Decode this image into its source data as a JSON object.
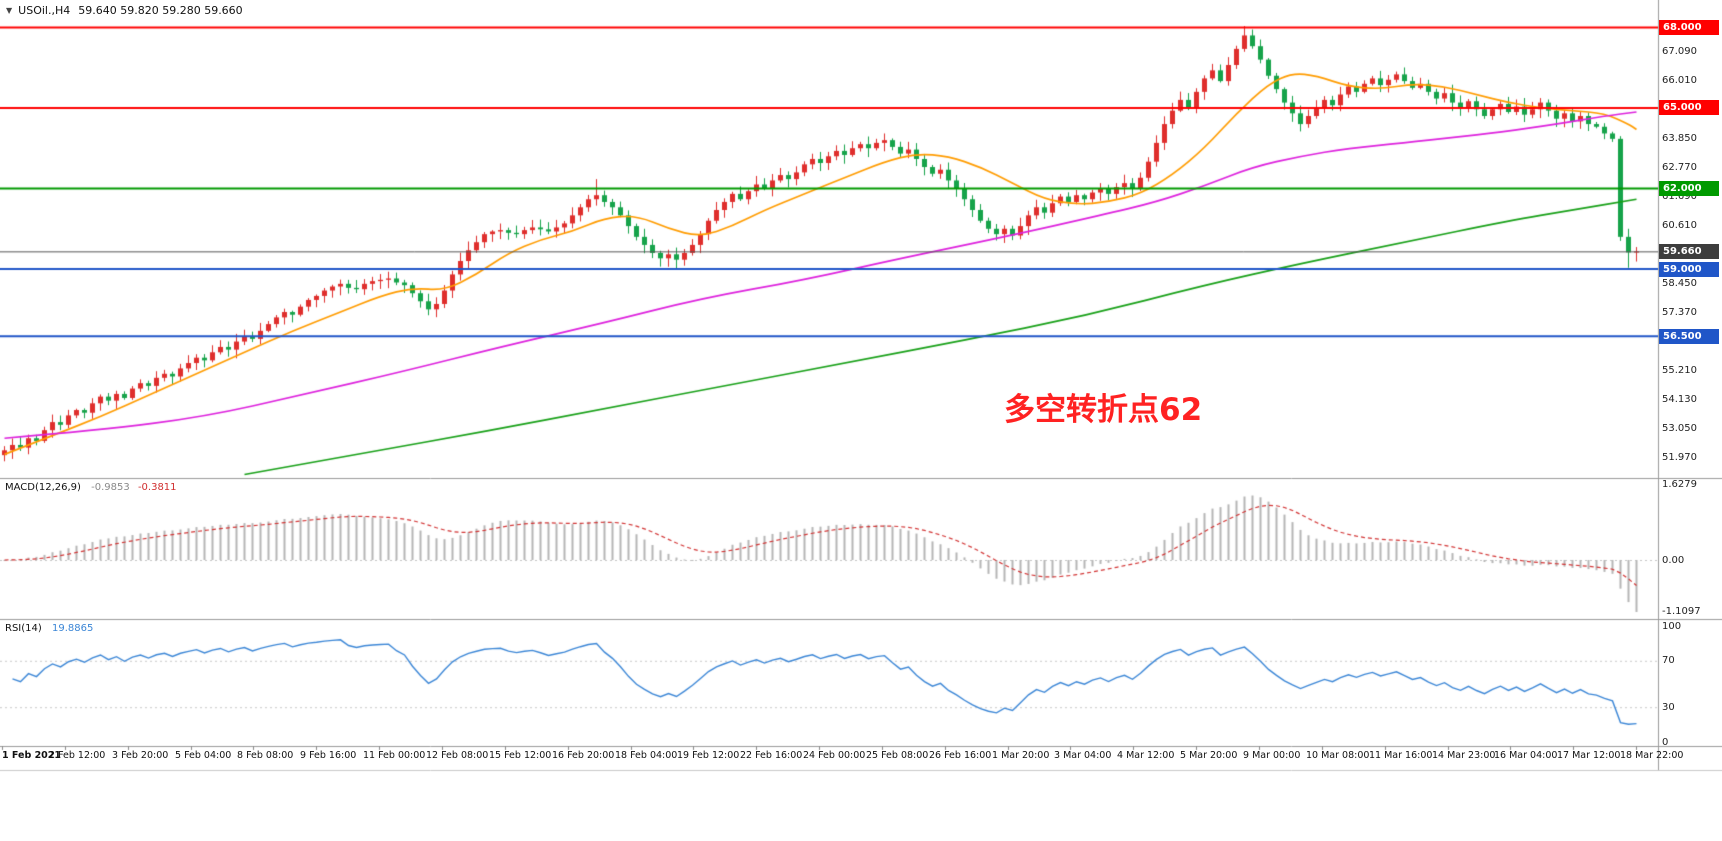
{
  "header": {
    "symbol": "USOil.,H4",
    "quote": "59.640 59.820 59.280 59.660"
  },
  "annotation": {
    "text": "多空转折点62",
    "color": "#ff2222"
  },
  "levels": [
    {
      "label": "68.000",
      "value": 68.0,
      "color": "#ff0000"
    },
    {
      "label": "65.000",
      "value": 65.0,
      "color": "#ff0000"
    },
    {
      "label": "62.000",
      "value": 62.0,
      "color": "#009a00"
    },
    {
      "label": "59.000",
      "value": 59.0,
      "color": "#2056c8"
    },
    {
      "label": "56.500",
      "value": 56.5,
      "color": "#2056c8"
    }
  ],
  "current_price": {
    "label": "59.660",
    "value": 59.66,
    "line_color": "#555555",
    "badge_color": "#3d3d3d"
  },
  "price_axis_labels": [
    {
      "label": "67.090",
      "value": 67.09
    },
    {
      "label": "66.010",
      "value": 66.01
    },
    {
      "label": "64.930",
      "value": 64.93
    },
    {
      "label": "63.850",
      "value": 63.85
    },
    {
      "label": "62.770",
      "value": 62.77
    },
    {
      "label": "61.690",
      "value": 61.69
    },
    {
      "label": "60.610",
      "value": 60.61
    },
    {
      "label": "59.530",
      "value": 59.53
    },
    {
      "label": "58.450",
      "value": 58.45
    },
    {
      "label": "57.370",
      "value": 57.37
    },
    {
      "label": "56.290",
      "value": 56.29
    },
    {
      "label": "55.210",
      "value": 55.21
    },
    {
      "label": "54.130",
      "value": 54.13
    },
    {
      "label": "53.050",
      "value": 53.05
    },
    {
      "label": "51.970",
      "value": 51.97
    }
  ],
  "macd_panel": {
    "label": "MACD(12,26,9)",
    "value_main": "-0.9853",
    "value_signal": "-0.3811",
    "axis": [
      {
        "label": "1.6279",
        "value": 1.6279
      },
      {
        "label": "0.00",
        "value": 0
      },
      {
        "label": "-1.1097",
        "value": -1.1097
      }
    ]
  },
  "rsi_panel": {
    "label": "RSI(14)",
    "value": "19.8865",
    "levels": [
      70,
      30
    ],
    "axis": [
      {
        "label": "100",
        "value": 100
      },
      {
        "label": "70",
        "value": 70
      },
      {
        "label": "30",
        "value": 30
      },
      {
        "label": "0",
        "value": 0
      }
    ]
  },
  "chart_data": {
    "type": "candlestick",
    "symbol": "USOil",
    "timeframe": "H4",
    "up_color": "#df2e2c",
    "down_color": "#16a34a",
    "price_range_hint": [
      51.2,
      68.35
    ],
    "last_ohlc": {
      "open": 59.64,
      "high": 59.82,
      "low": 59.28,
      "close": 59.66
    },
    "indicators": {
      "macd": {
        "fast": 12,
        "slow": 26,
        "signal": 9,
        "main_value": -0.9853,
        "signal_value": -0.3811
      },
      "rsi": {
        "period": 14,
        "value": 19.8865
      }
    },
    "closes": [
      52.25,
      52.45,
      52.35,
      52.7,
      52.6,
      53.0,
      53.3,
      53.2,
      53.55,
      53.75,
      53.65,
      54.0,
      54.25,
      54.1,
      54.35,
      54.2,
      54.55,
      54.75,
      54.65,
      54.95,
      55.1,
      55.0,
      55.3,
      55.5,
      55.7,
      55.6,
      55.9,
      56.1,
      56.0,
      56.3,
      56.5,
      56.4,
      56.7,
      56.95,
      57.2,
      57.4,
      57.3,
      57.6,
      57.85,
      58.0,
      58.2,
      58.35,
      58.45,
      58.3,
      58.25,
      58.45,
      58.55,
      58.6,
      58.65,
      58.5,
      58.4,
      58.1,
      57.8,
      57.5,
      57.7,
      58.2,
      58.8,
      59.3,
      59.7,
      60.0,
      60.3,
      60.4,
      60.45,
      60.35,
      60.3,
      60.45,
      60.55,
      60.48,
      60.4,
      60.55,
      60.7,
      61.0,
      61.3,
      61.6,
      61.75,
      61.5,
      61.3,
      61.0,
      60.6,
      60.2,
      59.9,
      59.6,
      59.4,
      59.55,
      59.35,
      59.6,
      59.9,
      60.3,
      60.8,
      61.2,
      61.5,
      61.8,
      61.6,
      61.9,
      62.15,
      62.0,
      62.3,
      62.5,
      62.35,
      62.6,
      62.9,
      63.1,
      62.95,
      63.2,
      63.4,
      63.25,
      63.5,
      63.65,
      63.5,
      63.7,
      63.8,
      63.55,
      63.3,
      63.45,
      63.1,
      62.8,
      62.55,
      62.7,
      62.3,
      62.0,
      61.6,
      61.2,
      60.8,
      60.5,
      60.3,
      60.5,
      60.25,
      60.6,
      61.0,
      61.3,
      61.1,
      61.45,
      61.7,
      61.5,
      61.75,
      61.6,
      61.85,
      62.0,
      61.8,
      62.05,
      62.2,
      62.0,
      62.4,
      63.0,
      63.7,
      64.4,
      64.9,
      65.3,
      65.0,
      65.6,
      66.1,
      66.4,
      66.0,
      66.6,
      67.2,
      67.7,
      67.3,
      66.8,
      66.2,
      65.7,
      65.2,
      64.8,
      64.4,
      64.7,
      65.0,
      65.3,
      65.1,
      65.5,
      65.8,
      65.6,
      65.9,
      66.1,
      65.85,
      66.05,
      66.25,
      66.0,
      65.75,
      65.9,
      65.6,
      65.35,
      65.55,
      65.2,
      65.0,
      65.25,
      64.95,
      64.7,
      64.95,
      65.15,
      64.85,
      65.05,
      64.75,
      64.95,
      65.2,
      64.9,
      64.6,
      64.8,
      64.5,
      64.7,
      64.4,
      64.3,
      64.05,
      63.85,
      60.2,
      59.62,
      59.66
    ],
    "candle_overrides": {
      "1": {
        "low": 51.93
      },
      "53": {
        "low": 57.28
      },
      "74": {
        "high": 62.35
      },
      "110": {
        "high": 64.05
      },
      "155": {
        "high": 68.05
      },
      "156": {
        "high": 67.92
      },
      "202": {
        "high": 63.95,
        "low": 60.05
      },
      "203": {
        "low": 59.05
      },
      "204": {
        "open": 59.64,
        "high": 59.82,
        "low": 59.28,
        "close": 59.66
      }
    },
    "overlays": [
      {
        "name": "ma-fast",
        "color": "#ff9c00",
        "points": [
          [
            0,
            52.1
          ],
          [
            6,
            52.8
          ],
          [
            12,
            53.5
          ],
          [
            18,
            54.3
          ],
          [
            24,
            55.1
          ],
          [
            30,
            55.9
          ],
          [
            36,
            56.7
          ],
          [
            42,
            57.4
          ],
          [
            47,
            58.0
          ],
          [
            51,
            58.3
          ],
          [
            55,
            58.2
          ],
          [
            59,
            58.8
          ],
          [
            63,
            59.6
          ],
          [
            67,
            60.1
          ],
          [
            71,
            60.4
          ],
          [
            75,
            60.9
          ],
          [
            79,
            61.0
          ],
          [
            83,
            60.5
          ],
          [
            87,
            60.2
          ],
          [
            91,
            60.6
          ],
          [
            95,
            61.2
          ],
          [
            100,
            61.8
          ],
          [
            105,
            62.4
          ],
          [
            110,
            63.0
          ],
          [
            114,
            63.3
          ],
          [
            118,
            63.2
          ],
          [
            122,
            62.8
          ],
          [
            126,
            62.2
          ],
          [
            130,
            61.6
          ],
          [
            134,
            61.4
          ],
          [
            138,
            61.5
          ],
          [
            142,
            61.8
          ],
          [
            146,
            62.5
          ],
          [
            150,
            63.5
          ],
          [
            154,
            64.8
          ],
          [
            158,
            65.9
          ],
          [
            161,
            66.3
          ],
          [
            164,
            66.2
          ],
          [
            168,
            65.8
          ],
          [
            172,
            65.7
          ],
          [
            176,
            65.9
          ],
          [
            180,
            65.8
          ],
          [
            184,
            65.5
          ],
          [
            188,
            65.2
          ],
          [
            192,
            65.0
          ],
          [
            196,
            64.9
          ],
          [
            200,
            64.8
          ],
          [
            203,
            64.4
          ],
          [
            204,
            64.2
          ]
        ]
      },
      {
        "name": "ma-mid",
        "color": "#dd22dd",
        "points": [
          [
            0,
            52.7
          ],
          [
            12,
            53.0
          ],
          [
            25,
            53.5
          ],
          [
            37,
            54.3
          ],
          [
            50,
            55.2
          ],
          [
            62,
            56.1
          ],
          [
            75,
            57.0
          ],
          [
            87,
            57.9
          ],
          [
            100,
            58.6
          ],
          [
            112,
            59.4
          ],
          [
            125,
            60.2
          ],
          [
            137,
            61.0
          ],
          [
            144,
            61.5
          ],
          [
            150,
            62.1
          ],
          [
            156,
            62.8
          ],
          [
            162,
            63.2
          ],
          [
            168,
            63.5
          ],
          [
            175,
            63.7
          ],
          [
            181,
            63.9
          ],
          [
            187,
            64.1
          ],
          [
            194,
            64.4
          ],
          [
            200,
            64.7
          ],
          [
            204,
            64.85
          ]
        ]
      },
      {
        "name": "ma-slow",
        "color": "#18a018",
        "points": [
          [
            30,
            51.35
          ],
          [
            45,
            52.15
          ],
          [
            60,
            52.95
          ],
          [
            75,
            53.8
          ],
          [
            90,
            54.65
          ],
          [
            105,
            55.5
          ],
          [
            120,
            56.35
          ],
          [
            135,
            57.25
          ],
          [
            150,
            58.4
          ],
          [
            162,
            59.2
          ],
          [
            175,
            60.0
          ],
          [
            188,
            60.8
          ],
          [
            196,
            61.2
          ],
          [
            204,
            61.6
          ]
        ]
      }
    ],
    "time_labels": [
      "1 Feb 2021",
      "2 Feb 12:00",
      "3 Feb 20:00",
      "5 Feb 04:00",
      "8 Feb 08:00",
      "9 Feb 16:00",
      "11 Feb 00:00",
      "12 Feb 08:00",
      "15 Feb 12:00",
      "16 Feb 20:00",
      "18 Feb 04:00",
      "19 Feb 12:00",
      "22 Feb 16:00",
      "24 Feb 00:00",
      "25 Feb 08:00",
      "26 Feb 16:00",
      "1 Mar 20:00",
      "3 Mar 04:00",
      "4 Mar 12:00",
      "5 Mar 20:00",
      "9 Mar 00:00",
      "10 Mar 08:00",
      "11 Mar 16:00",
      "14 Mar 23:00",
      "16 Mar 04:00",
      "17 Mar 12:00",
      "18 Mar 22:00"
    ]
  }
}
